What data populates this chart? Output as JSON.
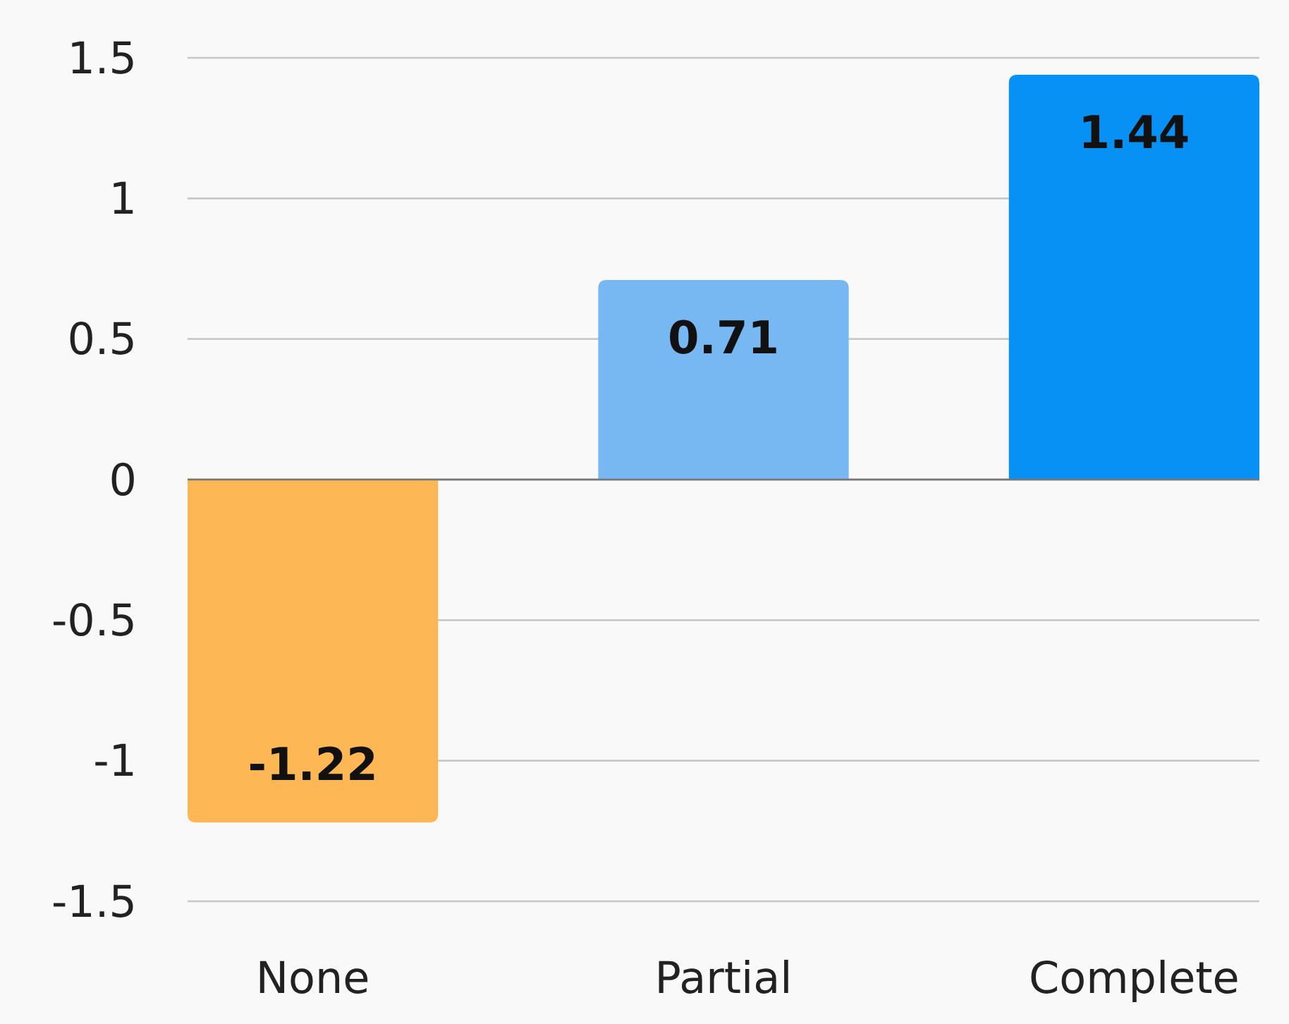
{
  "chart_data": {
    "type": "bar",
    "categories": [
      "None",
      "Partial",
      "Complete"
    ],
    "values": [
      -1.22,
      0.71,
      1.44
    ],
    "colors": [
      "#fdb755",
      "#77b7f2",
      "#0891f5"
    ],
    "ylim": [
      -1.5,
      1.5
    ],
    "yticks": [
      -1.5,
      -1,
      -0.5,
      0,
      0.5,
      1,
      1.5
    ],
    "grid": "y",
    "data_labels": true
  }
}
